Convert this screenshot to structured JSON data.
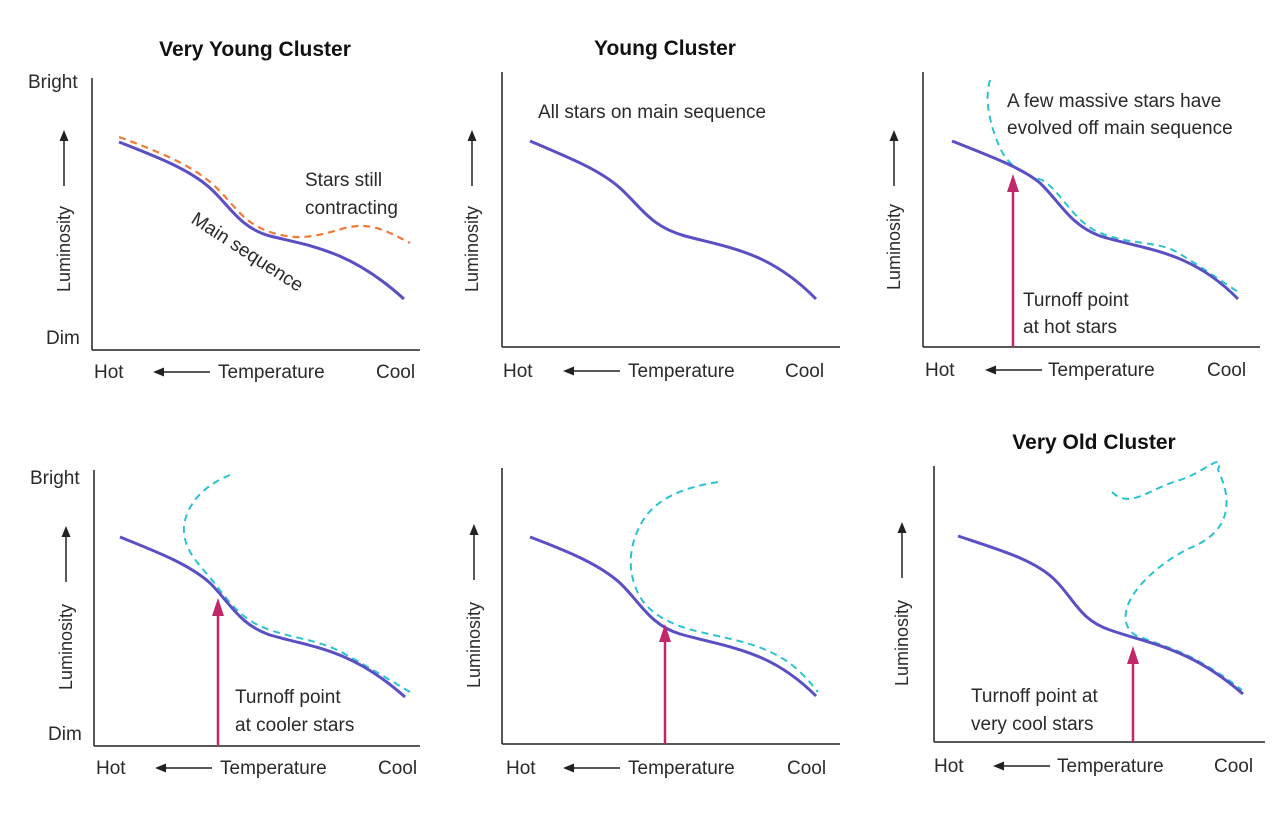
{
  "colors": {
    "main_sequence": "#5b4fc4",
    "contracting": "#f07a3a",
    "evolved": "#2cc3cf",
    "turnoff_arrow": "#c0286a",
    "axis": "#222222"
  },
  "axis_text": {
    "hot": "Hot",
    "temperature": "Temperature",
    "cool": "Cool",
    "luminosity": "Luminosity",
    "bright": "Bright",
    "dim": "Dim"
  },
  "panels": [
    {
      "title": "Very Young Cluster",
      "annotations": [
        "Stars still",
        "contracting"
      ],
      "curve_label": "Main sequence"
    },
    {
      "title": "Young Cluster",
      "annotations": [
        "All stars on main sequence"
      ]
    },
    {
      "title": "",
      "annotations": [
        "A few massive stars have",
        "evolved off main sequence",
        "Turnoff point",
        "at hot stars"
      ]
    },
    {
      "title": "",
      "annotations": [
        "Turnoff point",
        "at cooler stars"
      ]
    },
    {
      "title": "",
      "annotations": []
    },
    {
      "title": "Very Old Cluster",
      "annotations": [
        "Turnoff point at",
        "very cool stars"
      ]
    }
  ]
}
